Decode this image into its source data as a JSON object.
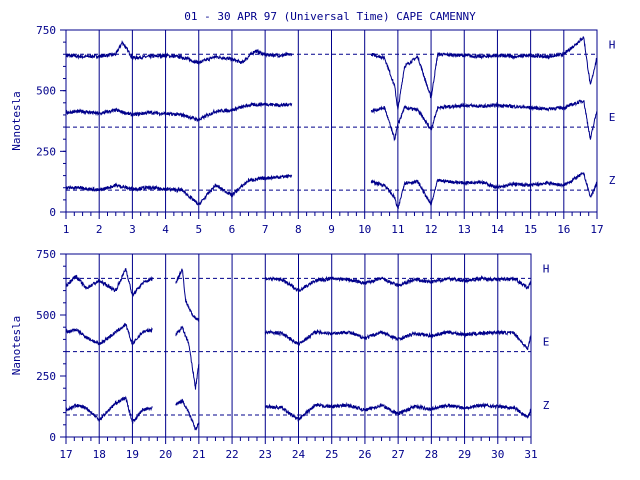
{
  "title": "01 - 30 APR 97 (Universal Time) CAPE CAMENNY",
  "colors": {
    "ink": "#00008b",
    "background": "#ffffff"
  },
  "chart_data": [
    {
      "type": "line",
      "title": "01 - 30 APR 97 (Universal Time) CAPE CAMENNY",
      "ylabel": "Nanotesla",
      "xlabel": "",
      "xlim": [
        1,
        17
      ],
      "ylim": [
        0,
        750
      ],
      "x_tick_labels": [
        "1",
        "2",
        "3",
        "4",
        "5",
        "6",
        "7",
        "8",
        "9",
        "10",
        "11",
        "12",
        "13",
        "14",
        "15",
        "16",
        "17"
      ],
      "y_tick_labels": [
        "0",
        "250",
        "500",
        "750"
      ],
      "grid": "vertical",
      "legend": "right",
      "series": [
        {
          "name": "H",
          "baseline": 650,
          "segments": [
            [
              1,
              7.8
            ],
            [
              10.2,
              17
            ]
          ],
          "points": [
            [
              1,
              645
            ],
            [
              1.5,
              640
            ],
            [
              2,
              642
            ],
            [
              2.5,
              650
            ],
            [
              2.7,
              700
            ],
            [
              3,
              635
            ],
            [
              3.5,
              640
            ],
            [
              4,
              645
            ],
            [
              4.5,
              638
            ],
            [
              5,
              615
            ],
            [
              5.5,
              640
            ],
            [
              6,
              630
            ],
            [
              6.3,
              615
            ],
            [
              6.7,
              665
            ],
            [
              7,
              648
            ],
            [
              7.5,
              645
            ],
            [
              7.8,
              650
            ],
            [
              10.2,
              650
            ],
            [
              10.6,
              635
            ],
            [
              10.9,
              520
            ],
            [
              11,
              420
            ],
            [
              11.2,
              600
            ],
            [
              11.6,
              640
            ],
            [
              12,
              470
            ],
            [
              12.2,
              650
            ],
            [
              13,
              645
            ],
            [
              13.5,
              640
            ],
            [
              14,
              645
            ],
            [
              14.5,
              640
            ],
            [
              15,
              645
            ],
            [
              15.5,
              640
            ],
            [
              16,
              650
            ],
            [
              16.6,
              720
            ],
            [
              16.8,
              520
            ],
            [
              17,
              640
            ]
          ]
        },
        {
          "name": "E",
          "baseline": 350,
          "segments": [
            [
              1,
              7.8
            ],
            [
              10.2,
              17
            ]
          ],
          "points": [
            [
              1,
              410
            ],
            [
              1.5,
              415
            ],
            [
              2,
              405
            ],
            [
              2.5,
              420
            ],
            [
              3,
              400
            ],
            [
              3.5,
              410
            ],
            [
              4,
              405
            ],
            [
              4.5,
              400
            ],
            [
              5,
              380
            ],
            [
              5.5,
              415
            ],
            [
              6,
              420
            ],
            [
              6.5,
              440
            ],
            [
              7,
              445
            ],
            [
              7.5,
              440
            ],
            [
              7.8,
              445
            ],
            [
              10.2,
              415
            ],
            [
              10.6,
              430
            ],
            [
              10.9,
              300
            ],
            [
              11,
              360
            ],
            [
              11.2,
              430
            ],
            [
              11.6,
              420
            ],
            [
              12,
              340
            ],
            [
              12.2,
              430
            ],
            [
              13,
              440
            ],
            [
              13.5,
              435
            ],
            [
              14,
              440
            ],
            [
              14.5,
              435
            ],
            [
              15,
              430
            ],
            [
              15.5,
              425
            ],
            [
              16,
              430
            ],
            [
              16.6,
              460
            ],
            [
              16.8,
              300
            ],
            [
              17,
              420
            ]
          ]
        },
        {
          "name": "Z",
          "baseline": 90,
          "segments": [
            [
              1,
              7.8
            ],
            [
              10.2,
              17
            ]
          ],
          "points": [
            [
              1,
              100
            ],
            [
              1.5,
              100
            ],
            [
              2,
              90
            ],
            [
              2.5,
              110
            ],
            [
              3,
              95
            ],
            [
              3.5,
              100
            ],
            [
              4,
              95
            ],
            [
              4.5,
              90
            ],
            [
              5,
              30
            ],
            [
              5.5,
              110
            ],
            [
              6,
              70
            ],
            [
              6.5,
              130
            ],
            [
              7,
              140
            ],
            [
              7.5,
              145
            ],
            [
              7.8,
              150
            ],
            [
              10.2,
              125
            ],
            [
              10.6,
              110
            ],
            [
              10.9,
              60
            ],
            [
              11,
              10
            ],
            [
              11.2,
              120
            ],
            [
              11.6,
              125
            ],
            [
              12,
              30
            ],
            [
              12.2,
              130
            ],
            [
              13,
              120
            ],
            [
              13.5,
              125
            ],
            [
              14,
              100
            ],
            [
              14.5,
              115
            ],
            [
              15,
              110
            ],
            [
              15.5,
              120
            ],
            [
              16,
              110
            ],
            [
              16.6,
              160
            ],
            [
              16.8,
              60
            ],
            [
              17,
              120
            ]
          ]
        }
      ]
    },
    {
      "type": "line",
      "title": "",
      "ylabel": "Nanotesla",
      "xlabel": "",
      "xlim": [
        17,
        31
      ],
      "ylim": [
        0,
        750
      ],
      "x_tick_labels": [
        "17",
        "18",
        "19",
        "20",
        "21",
        "22",
        "23",
        "24",
        "25",
        "26",
        "27",
        "28",
        "29",
        "30",
        "31"
      ],
      "y_tick_labels": [
        "0",
        "250",
        "500",
        "750"
      ],
      "grid": "vertical",
      "legend": "right",
      "series": [
        {
          "name": "H",
          "baseline": 650,
          "segments": [
            [
              17,
              19.6
            ],
            [
              20.3,
              21
            ],
            [
              23,
              31
            ]
          ],
          "points": [
            [
              17,
              620
            ],
            [
              17.3,
              660
            ],
            [
              17.6,
              610
            ],
            [
              18,
              640
            ],
            [
              18.5,
              600
            ],
            [
              18.8,
              690
            ],
            [
              19,
              580
            ],
            [
              19.3,
              630
            ],
            [
              19.6,
              650
            ],
            [
              20.3,
              630
            ],
            [
              20.5,
              690
            ],
            [
              20.6,
              560
            ],
            [
              20.8,
              500
            ],
            [
              21,
              480
            ],
            [
              23,
              650
            ],
            [
              23.5,
              645
            ],
            [
              24,
              600
            ],
            [
              24.5,
              640
            ],
            [
              25,
              650
            ],
            [
              25.5,
              645
            ],
            [
              26,
              630
            ],
            [
              26.5,
              650
            ],
            [
              27,
              620
            ],
            [
              27.5,
              645
            ],
            [
              28,
              635
            ],
            [
              28.5,
              650
            ],
            [
              29,
              640
            ],
            [
              29.5,
              650
            ],
            [
              30,
              645
            ],
            [
              30.5,
              650
            ],
            [
              30.9,
              610
            ],
            [
              31,
              640
            ]
          ]
        },
        {
          "name": "E",
          "baseline": 350,
          "segments": [
            [
              17,
              19.6
            ],
            [
              20.3,
              21
            ],
            [
              23,
              31
            ]
          ],
          "points": [
            [
              17,
              430
            ],
            [
              17.3,
              440
            ],
            [
              17.6,
              410
            ],
            [
              18,
              380
            ],
            [
              18.5,
              430
            ],
            [
              18.8,
              460
            ],
            [
              19,
              380
            ],
            [
              19.3,
              430
            ],
            [
              19.6,
              440
            ],
            [
              20.3,
              420
            ],
            [
              20.5,
              450
            ],
            [
              20.7,
              380
            ],
            [
              20.9,
              200
            ],
            [
              21,
              300
            ],
            [
              23,
              430
            ],
            [
              23.5,
              425
            ],
            [
              24,
              380
            ],
            [
              24.5,
              430
            ],
            [
              25,
              425
            ],
            [
              25.5,
              430
            ],
            [
              26,
              405
            ],
            [
              26.5,
              430
            ],
            [
              27,
              400
            ],
            [
              27.5,
              425
            ],
            [
              28,
              415
            ],
            [
              28.5,
              430
            ],
            [
              29,
              420
            ],
            [
              29.5,
              425
            ],
            [
              30,
              430
            ],
            [
              30.5,
              425
            ],
            [
              30.9,
              360
            ],
            [
              31,
              420
            ]
          ]
        },
        {
          "name": "Z",
          "baseline": 90,
          "segments": [
            [
              17,
              19.6
            ],
            [
              20.3,
              21
            ],
            [
              23,
              31
            ]
          ],
          "points": [
            [
              17,
              110
            ],
            [
              17.3,
              130
            ],
            [
              17.6,
              120
            ],
            [
              18,
              70
            ],
            [
              18.5,
              140
            ],
            [
              18.8,
              160
            ],
            [
              19,
              60
            ],
            [
              19.3,
              110
            ],
            [
              19.6,
              120
            ],
            [
              20.3,
              130
            ],
            [
              20.5,
              150
            ],
            [
              20.7,
              100
            ],
            [
              20.9,
              30
            ],
            [
              21,
              60
            ],
            [
              23,
              125
            ],
            [
              23.5,
              120
            ],
            [
              24,
              70
            ],
            [
              24.5,
              130
            ],
            [
              25,
              125
            ],
            [
              25.5,
              130
            ],
            [
              26,
              110
            ],
            [
              26.5,
              130
            ],
            [
              27,
              95
            ],
            [
              27.5,
              125
            ],
            [
              28,
              115
            ],
            [
              28.5,
              130
            ],
            [
              29,
              120
            ],
            [
              29.5,
              130
            ],
            [
              30,
              125
            ],
            [
              30.5,
              120
            ],
            [
              30.9,
              80
            ],
            [
              31,
              115
            ]
          ]
        }
      ]
    }
  ]
}
